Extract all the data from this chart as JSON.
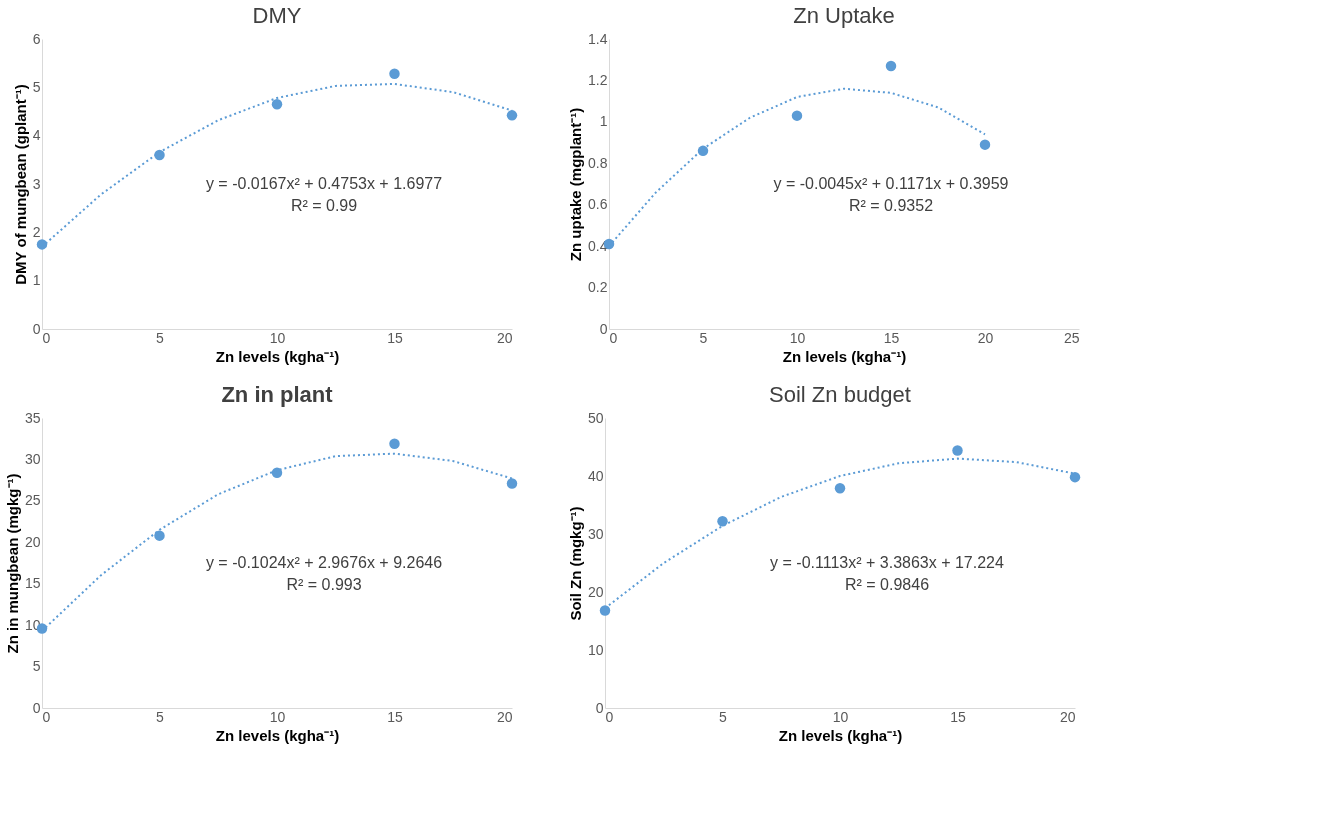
{
  "chart_data": [
    {
      "type": "scatter",
      "title": "DMY",
      "xlabel": "Zn levels (kgha⁻¹)",
      "ylabel": "DMY of mungbean (gplant⁻¹)",
      "x": [
        0,
        5,
        10,
        15,
        20
      ],
      "xlim": [
        0,
        20
      ],
      "xticks": [
        0,
        5,
        10,
        15,
        20
      ],
      "ylim": [
        0,
        6
      ],
      "yticks": [
        0,
        1,
        2,
        3,
        4,
        5,
        6
      ],
      "grid": false,
      "annotations": [
        "y = -0.0167x² + 0.4753x + 1.6977",
        "R² = 0.99"
      ],
      "series": [
        {
          "type": "scatter",
          "marker": "circle",
          "color": "#5b9bd5",
          "values": [
            1.75,
            3.6,
            4.65,
            5.28,
            4.42
          ]
        },
        {
          "type": "line",
          "color": "#5b9bd5",
          "line_style": "dotted",
          "x": [
            0,
            2.5,
            5,
            7.5,
            10,
            12.5,
            15,
            17.5,
            20
          ],
          "values": [
            1.7,
            2.78,
            3.66,
            4.32,
            4.78,
            5.03,
            5.07,
            4.9,
            4.52
          ]
        }
      ]
    },
    {
      "type": "scatter",
      "title": "Zn Uptake",
      "xlabel": "Zn levels (kgha⁻¹)",
      "ylabel": "Zn uptake (mgplant⁻¹)",
      "x": [
        0,
        5,
        10,
        15,
        20
      ],
      "xlim": [
        0,
        25
      ],
      "xticks": [
        0,
        5,
        10,
        15,
        20,
        25
      ],
      "ylim": [
        0,
        1.4
      ],
      "yticks": [
        0,
        0.2,
        0.4,
        0.6,
        0.8,
        1,
        1.2,
        1.4
      ],
      "grid": false,
      "annotations": [
        "y = -0.0045x² + 0.1171x + 0.3959",
        "R² = 0.9352"
      ],
      "series": [
        {
          "type": "scatter",
          "marker": "circle",
          "color": "#5b9bd5",
          "values": [
            0.41,
            0.86,
            1.03,
            1.27,
            0.89
          ]
        },
        {
          "type": "line",
          "color": "#5b9bd5",
          "line_style": "dotted",
          "x": [
            0,
            2.5,
            5,
            7.5,
            10,
            12.5,
            15,
            17.5,
            20
          ],
          "values": [
            0.4,
            0.66,
            0.87,
            1.02,
            1.12,
            1.16,
            1.14,
            1.07,
            0.94
          ]
        }
      ]
    },
    {
      "type": "scatter",
      "title": "Zn in plant",
      "xlabel": "Zn levels (kgha⁻¹)",
      "ylabel": "Zn in mungbean (mgkg⁻¹)",
      "x": [
        0,
        5,
        10,
        15,
        20
      ],
      "xlim": [
        0,
        20
      ],
      "xticks": [
        0,
        5,
        10,
        15,
        20
      ],
      "ylim": [
        0,
        35
      ],
      "yticks": [
        0,
        5,
        10,
        15,
        20,
        25,
        30,
        35
      ],
      "grid": false,
      "annotations": [
        "y = -0.1024x² + 2.9676x + 9.2646",
        "R² = 0.993"
      ],
      "series": [
        {
          "type": "scatter",
          "marker": "circle",
          "color": "#5b9bd5",
          "values": [
            9.6,
            20.8,
            28.4,
            31.9,
            27.1
          ]
        },
        {
          "type": "line",
          "color": "#5b9bd5",
          "line_style": "dotted",
          "x": [
            0,
            2.5,
            5,
            7.5,
            10,
            12.5,
            15,
            17.5,
            20
          ],
          "values": [
            9.3,
            16,
            21.5,
            25.8,
            28.7,
            30.4,
            30.7,
            29.8,
            27.7
          ]
        }
      ]
    },
    {
      "type": "scatter",
      "title": "Soil Zn budget",
      "xlabel": "Zn levels (kgha⁻¹)",
      "ylabel": "Soil Zn (mgkg⁻¹)",
      "x": [
        0,
        5,
        10,
        15,
        20
      ],
      "xlim": [
        0,
        20
      ],
      "xticks": [
        0,
        5,
        10,
        15,
        20
      ],
      "ylim": [
        0,
        50
      ],
      "yticks": [
        0,
        10,
        20,
        30,
        40,
        50
      ],
      "grid": false,
      "annotations": [
        "y = -0.1113x² + 3.3863x + 17.224",
        "R² = 0.9846"
      ],
      "series": [
        {
          "type": "scatter",
          "marker": "circle",
          "color": "#5b9bd5",
          "values": [
            16.8,
            32.2,
            37.9,
            44.4,
            39.8
          ]
        },
        {
          "type": "line",
          "color": "#5b9bd5",
          "line_style": "dotted",
          "x": [
            0,
            2.5,
            5,
            7.5,
            10,
            12.5,
            15,
            17.5,
            20
          ],
          "values": [
            17.2,
            25,
            31.4,
            36.4,
            40,
            42.2,
            43,
            42.4,
            40.4
          ]
        }
      ]
    }
  ]
}
